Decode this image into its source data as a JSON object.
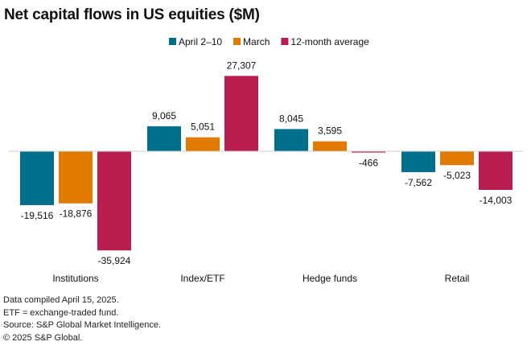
{
  "title": "Net capital flows in US equities ($M)",
  "notes": [
    "Data compiled April 15, 2025.",
    "ETF = exchange-traded fund.",
    "Source: S&P Global Market Intelligence.",
    "© 2025 S&P Global."
  ],
  "chart_data": {
    "type": "bar",
    "title": "Net capital flows in US equities ($M)",
    "categories": [
      "Institutions",
      "Index/ETF",
      "Hedge funds",
      "Retail"
    ],
    "series": [
      {
        "name": "April 2–10",
        "color": "#006f8c",
        "values": [
          -19516,
          9065,
          8045,
          -7562
        ],
        "labels": [
          "-19,516",
          "9,065",
          "8,045",
          "-7,562"
        ]
      },
      {
        "name": "March",
        "color": "#e07b00",
        "values": [
          -18876,
          5051,
          3595,
          -5023
        ],
        "labels": [
          "-18,876",
          "5,051",
          "3,595",
          "-5,023"
        ]
      },
      {
        "name": "12-month average",
        "color": "#b81f50",
        "values": [
          -35924,
          27307,
          -466,
          -14003
        ],
        "labels": [
          "-35,924",
          "27,307",
          "-466",
          "-14,003"
        ]
      }
    ],
    "legend_position": "top-center",
    "grid": false,
    "ylim": [
      -36000,
      28000
    ]
  }
}
